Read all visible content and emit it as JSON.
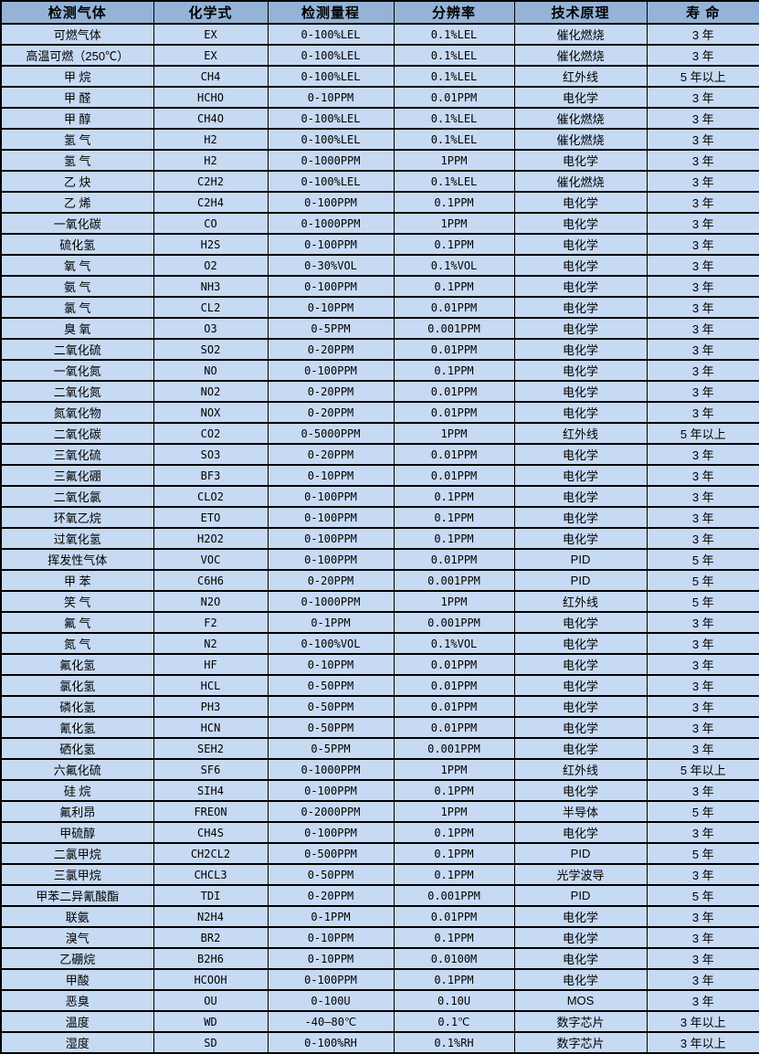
{
  "colors": {
    "header_bg": "#95b3d7",
    "row_bg": "#c7daf3",
    "border": "#000000",
    "text": "#000000"
  },
  "table": {
    "columns": [
      {
        "key": "gas",
        "label": "检测气体"
      },
      {
        "key": "formula",
        "label": "化学式"
      },
      {
        "key": "range",
        "label": "检测量程"
      },
      {
        "key": "resolution",
        "label": "分辨率"
      },
      {
        "key": "principle",
        "label": "技术原理"
      },
      {
        "key": "lifespan",
        "label": "寿 命"
      }
    ],
    "rows": [
      {
        "gas": "可燃气体",
        "formula": "EX",
        "range": "0-100%LEL",
        "resolution": "0.1%LEL",
        "principle": "催化燃烧",
        "lifespan": "3 年"
      },
      {
        "gas": "高温可燃（250℃）",
        "formula": "EX",
        "range": "0-100%LEL",
        "resolution": "0.1%LEL",
        "principle": "催化燃烧",
        "lifespan": "3 年"
      },
      {
        "gas": "甲 烷",
        "formula": "CH4",
        "range": "0-100%LEL",
        "resolution": "0.1%LEL",
        "principle": "红外线",
        "lifespan": "5 年以上"
      },
      {
        "gas": "甲 醛",
        "formula": "HCHO",
        "range": "0-10PPM",
        "resolution": "0.01PPM",
        "principle": "电化学",
        "lifespan": "3 年"
      },
      {
        "gas": "甲 醇",
        "formula": "CH4O",
        "range": "0-100%LEL",
        "resolution": "0.1%LEL",
        "principle": "催化燃烧",
        "lifespan": "3 年"
      },
      {
        "gas": "氢 气",
        "formula": "H2",
        "range": "0-100%LEL",
        "resolution": "0.1%LEL",
        "principle": "催化燃烧",
        "lifespan": "3 年"
      },
      {
        "gas": "氢 气",
        "formula": "H2",
        "range": "0-1000PPM",
        "resolution": "1PPM",
        "principle": "电化学",
        "lifespan": "3 年"
      },
      {
        "gas": "乙 炔",
        "formula": "C2H2",
        "range": "0-100%LEL",
        "resolution": "0.1%LEL",
        "principle": "催化燃烧",
        "lifespan": "3 年"
      },
      {
        "gas": "乙 烯",
        "formula": "C2H4",
        "range": "0-100PPM",
        "resolution": "0.1PPM",
        "principle": "电化学",
        "lifespan": "3 年"
      },
      {
        "gas": "一氧化碳",
        "formula": "CO",
        "range": "0-1000PPM",
        "resolution": "1PPM",
        "principle": "电化学",
        "lifespan": "3 年"
      },
      {
        "gas": "硫化氢",
        "formula": "H2S",
        "range": "0-100PPM",
        "resolution": "0.1PPM",
        "principle": "电化学",
        "lifespan": "3 年"
      },
      {
        "gas": "氧 气",
        "formula": "O2",
        "range": "0-30%VOL",
        "resolution": "0.1%VOL",
        "principle": "电化学",
        "lifespan": "3 年"
      },
      {
        "gas": "氨 气",
        "formula": "NH3",
        "range": "0-100PPM",
        "resolution": "0.1PPM",
        "principle": "电化学",
        "lifespan": "3 年"
      },
      {
        "gas": "氯 气",
        "formula": "CL2",
        "range": "0-10PPM",
        "resolution": "0.01PPM",
        "principle": "电化学",
        "lifespan": "3 年"
      },
      {
        "gas": "臭 氧",
        "formula": "O3",
        "range": "0-5PPM",
        "resolution": "0.001PPM",
        "principle": "电化学",
        "lifespan": "3 年"
      },
      {
        "gas": "二氧化硫",
        "formula": "SO2",
        "range": "0-20PPM",
        "resolution": "0.01PPM",
        "principle": "电化学",
        "lifespan": "3 年"
      },
      {
        "gas": "一氧化氮",
        "formula": "NO",
        "range": "0-100PPM",
        "resolution": "0.1PPM",
        "principle": "电化学",
        "lifespan": "3 年"
      },
      {
        "gas": "二氧化氮",
        "formula": "NO2",
        "range": "0-20PPM",
        "resolution": "0.01PPM",
        "principle": "电化学",
        "lifespan": "3 年"
      },
      {
        "gas": "氮氧化物",
        "formula": "NOX",
        "range": "0-20PPM",
        "resolution": "0.01PPM",
        "principle": "电化学",
        "lifespan": "3 年"
      },
      {
        "gas": "二氧化碳",
        "formula": "CO2",
        "range": "0-5000PPM",
        "resolution": "1PPM",
        "principle": "红外线",
        "lifespan": "5 年以上"
      },
      {
        "gas": "三氧化硫",
        "formula": "SO3",
        "range": "0-20PPM",
        "resolution": "0.01PPM",
        "principle": "电化学",
        "lifespan": "3 年"
      },
      {
        "gas": "三氟化硼",
        "formula": "BF3",
        "range": "0-10PPM",
        "resolution": "0.01PPM",
        "principle": "电化学",
        "lifespan": "3 年"
      },
      {
        "gas": "二氧化氯",
        "formula": "CLO2",
        "range": "0-100PPM",
        "resolution": "0.1PPM",
        "principle": "电化学",
        "lifespan": "3 年"
      },
      {
        "gas": "环氧乙烷",
        "formula": "ETO",
        "range": "0-100PPM",
        "resolution": "0.1PPM",
        "principle": "电化学",
        "lifespan": "3 年"
      },
      {
        "gas": "过氧化氢",
        "formula": "H2O2",
        "range": "0-100PPM",
        "resolution": "0.1PPM",
        "principle": "电化学",
        "lifespan": "3 年"
      },
      {
        "gas": "挥发性气体",
        "formula": "VOC",
        "range": "0-100PPM",
        "resolution": "0.01PPM",
        "principle": "PID",
        "lifespan": "5 年"
      },
      {
        "gas": "甲 苯",
        "formula": "C6H6",
        "range": "0-20PPM",
        "resolution": "0.001PPM",
        "principle": "PID",
        "lifespan": "5 年"
      },
      {
        "gas": "笑 气",
        "formula": "N2O",
        "range": "0-1000PPM",
        "resolution": "1PPM",
        "principle": "红外线",
        "lifespan": "5 年"
      },
      {
        "gas": "氟 气",
        "formula": "F2",
        "range": "0-1PPM",
        "resolution": "0.001PPM",
        "principle": "电化学",
        "lifespan": "3 年"
      },
      {
        "gas": "氮 气",
        "formula": "N2",
        "range": "0-100%VOL",
        "resolution": "0.1%VOL",
        "principle": "电化学",
        "lifespan": "3 年"
      },
      {
        "gas": "氟化氢",
        "formula": "HF",
        "range": "0-10PPM",
        "resolution": "0.01PPM",
        "principle": "电化学",
        "lifespan": "3 年"
      },
      {
        "gas": "氯化氢",
        "formula": "HCL",
        "range": "0-50PPM",
        "resolution": "0.01PPM",
        "principle": "电化学",
        "lifespan": "3 年"
      },
      {
        "gas": "磷化氢",
        "formula": "PH3",
        "range": "0-50PPM",
        "resolution": "0.01PPM",
        "principle": "电化学",
        "lifespan": "3 年"
      },
      {
        "gas": "氰化氢",
        "formula": "HCN",
        "range": "0-50PPM",
        "resolution": "0.01PPM",
        "principle": "电化学",
        "lifespan": "3 年"
      },
      {
        "gas": "硒化氢",
        "formula": "SEH2",
        "range": "0-5PPM",
        "resolution": "0.001PPM",
        "principle": "电化学",
        "lifespan": "3 年"
      },
      {
        "gas": "六氟化硫",
        "formula": "SF6",
        "range": "0-1000PPM",
        "resolution": "1PPM",
        "principle": "红外线",
        "lifespan": "5 年以上"
      },
      {
        "gas": "硅 烷",
        "formula": "SIH4",
        "range": "0-100PPM",
        "resolution": "0.1PPM",
        "principle": "电化学",
        "lifespan": "3 年"
      },
      {
        "gas": "氟利昂",
        "formula": "FREON",
        "range": "0-2000PPM",
        "resolution": "1PPM",
        "principle": "半导体",
        "lifespan": "5 年"
      },
      {
        "gas": "甲硫醇",
        "formula": "CH4S",
        "range": "0-100PPM",
        "resolution": "0.1PPM",
        "principle": "电化学",
        "lifespan": "3 年"
      },
      {
        "gas": "二氯甲烷",
        "formula": "CH2CL2",
        "range": "0-500PPM",
        "resolution": "0.1PPM",
        "principle": "PID",
        "lifespan": "5 年"
      },
      {
        "gas": "三氯甲烷",
        "formula": "CHCL3",
        "range": "0-50PPM",
        "resolution": "0.1PPM",
        "principle": "光学波导",
        "lifespan": "3 年"
      },
      {
        "gas": "甲苯二异氰酸酯",
        "formula": "TDI",
        "range": "0-20PPM",
        "resolution": "0.001PPM",
        "principle": "PID",
        "lifespan": "5 年"
      },
      {
        "gas": "联氨",
        "formula": "N2H4",
        "range": "0-1PPM",
        "resolution": "0.01PPM",
        "principle": "电化学",
        "lifespan": "3 年"
      },
      {
        "gas": "溴气",
        "formula": "BR2",
        "range": "0-10PPM",
        "resolution": "0.1PPM",
        "principle": "电化学",
        "lifespan": "3 年"
      },
      {
        "gas": "乙硼烷",
        "formula": "B2H6",
        "range": "0-10PPM",
        "resolution": "0.0100M",
        "principle": "电化学",
        "lifespan": "3 年"
      },
      {
        "gas": "甲酸",
        "formula": "HCOOH",
        "range": "0-100PPM",
        "resolution": "0.1PPM",
        "principle": "电化学",
        "lifespan": "3 年"
      },
      {
        "gas": "恶臭",
        "formula": "OU",
        "range": "0-100U",
        "resolution": "0.10U",
        "principle": "MOS",
        "lifespan": "3 年"
      },
      {
        "gas": "温度",
        "formula": "WD",
        "range": "-40—80℃",
        "resolution": "0.1℃",
        "principle": "数字芯片",
        "lifespan": "3 年以上"
      },
      {
        "gas": "湿度",
        "formula": "SD",
        "range": "0-100%RH",
        "resolution": "0.1%RH",
        "principle": "数字芯片",
        "lifespan": "3 年以上"
      }
    ]
  }
}
